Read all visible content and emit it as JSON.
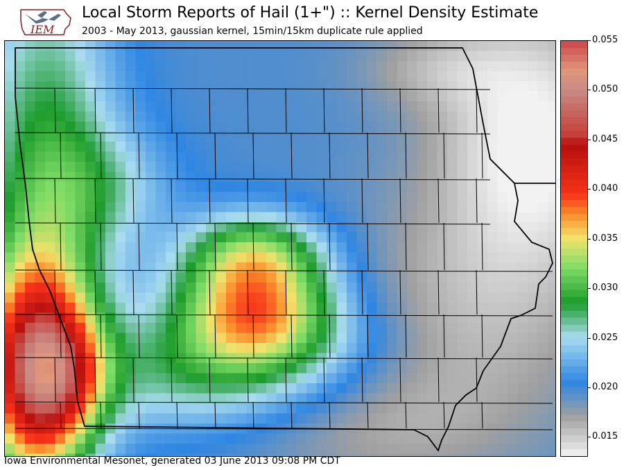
{
  "header": {
    "logo_text": "IEM",
    "title": "Local Storm Reports of Hail (1+\") :: Kernel Density Estimate",
    "subtitle": "2003 - May 2013, gaussian kernel, 15min/15km duplicate rule applied"
  },
  "colorbar": {
    "ticks": [
      "0.055",
      "0.050",
      "0.045",
      "0.040",
      "0.035",
      "0.030",
      "0.025",
      "0.020",
      "0.015"
    ],
    "stops": [
      {
        "value": 0.013,
        "color": "#f2f2f2"
      },
      {
        "value": 0.017,
        "color": "#a0a0a0"
      },
      {
        "value": 0.0205,
        "color": "#2f86e2"
      },
      {
        "value": 0.025,
        "color": "#a9dcf0"
      },
      {
        "value": 0.0285,
        "color": "#1c9c2c"
      },
      {
        "value": 0.032,
        "color": "#7fdc67"
      },
      {
        "value": 0.035,
        "color": "#f2e26c"
      },
      {
        "value": 0.0375,
        "color": "#fb8a2a"
      },
      {
        "value": 0.0395,
        "color": "#f7321a"
      },
      {
        "value": 0.0445,
        "color": "#b50f0f"
      },
      {
        "value": 0.0455,
        "color": "#c63f3a"
      },
      {
        "value": 0.05,
        "color": "#c98a84"
      },
      {
        "value": 0.052,
        "color": "#e0977c"
      },
      {
        "value": 0.055,
        "color": "#c9464a"
      }
    ]
  },
  "footer": "Iowa Environmental Mesonet, generated 03 June 2013 09:08 PM CDT"
}
